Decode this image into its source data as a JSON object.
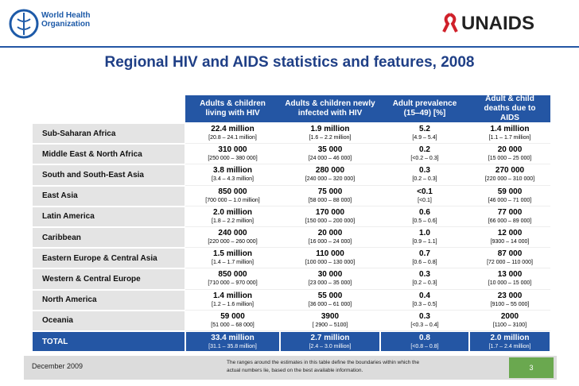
{
  "header": {
    "left_logo": [
      "World Health",
      "Organization"
    ],
    "right_logo": "UNAIDS"
  },
  "title": "Regional HIV and AIDS statistics and features, 2008",
  "table": {
    "columns": [
      "Adults & children living with HIV",
      "Adults & children newly infected with HIV",
      "Adult prevalence (15‒49) [%]",
      "Adult & child deaths due to AIDS"
    ],
    "rows": [
      {
        "region": "Sub-Saharan Africa",
        "cells": [
          [
            "22.4 million",
            "[20.8 – 24.1 million]"
          ],
          [
            "1.9 million",
            "[1.6 – 2.2 million]"
          ],
          [
            "5.2",
            "[4.9 – 5.4]"
          ],
          [
            "1.4 million",
            "[1.1 – 1.7 million]"
          ]
        ]
      },
      {
        "region": "Middle East & North Africa",
        "cells": [
          [
            "310 000",
            "[250 000 – 380 000]"
          ],
          [
            "35 000",
            "[24 000 – 46 000]"
          ],
          [
            "0.2",
            "[<0.2 – 0.3]"
          ],
          [
            "20 000",
            "[15 000 – 25 000]"
          ]
        ]
      },
      {
        "region": "South and South-East Asia",
        "cells": [
          [
            "3.8 million",
            "[3.4 – 4.3 million]"
          ],
          [
            "280 000",
            "[240 000 – 320 000]"
          ],
          [
            "0.3",
            "[0.2 – 0.3]"
          ],
          [
            "270 000",
            "[220 000 – 310 000]"
          ]
        ]
      },
      {
        "region": "East Asia",
        "cells": [
          [
            "850 000",
            "[700 000 – 1.0 million]"
          ],
          [
            "75 000",
            "[58 000 – 88 000]"
          ],
          [
            "<0.1",
            "[<0.1]"
          ],
          [
            "59 000",
            "[46 000 – 71 000]"
          ]
        ]
      },
      {
        "region": "Latin America",
        "cells": [
          [
            "2.0 million",
            "[1.8 – 2.2 million]"
          ],
          [
            "170 000",
            "[150 000 – 200 000]"
          ],
          [
            "0.6",
            "[0.5 – 0.6]"
          ],
          [
            "77 000",
            "[66 000 – 89 000]"
          ]
        ]
      },
      {
        "region": "Caribbean",
        "cells": [
          [
            "240 000",
            "[220 000 – 260 000]"
          ],
          [
            "20 000",
            "[16 000 – 24 000]"
          ],
          [
            "1.0",
            "[0.9 – 1.1]"
          ],
          [
            "12 000",
            "[9300 – 14 000]"
          ]
        ]
      },
      {
        "region": "Eastern Europe & Central Asia",
        "cells": [
          [
            "1.5 million",
            "[1.4 – 1.7 million]"
          ],
          [
            "110 000",
            "[100 000 – 130 000]"
          ],
          [
            "0.7",
            "[0.6 – 0.8]"
          ],
          [
            "87 000",
            "[72 000 – 110 000]"
          ]
        ]
      },
      {
        "region": "Western & Central Europe",
        "cells": [
          [
            "850 000",
            "[710 000 – 970 000]"
          ],
          [
            "30 000",
            "[23 000 – 35 000]"
          ],
          [
            "0.3",
            "[0.2 – 0.3]"
          ],
          [
            "13 000",
            "[10 000 – 15 000]"
          ]
        ]
      },
      {
        "region": "North America",
        "cells": [
          [
            "1.4 million",
            "[1.2 – 1.6 million]"
          ],
          [
            "55 000",
            "[36 000 – 61 000]"
          ],
          [
            "0.4",
            "[0.3 – 0.5]"
          ],
          [
            "23 000",
            "[9100 – 55 000]"
          ]
        ]
      },
      {
        "region": "Oceania",
        "cells": [
          [
            "59 000",
            "[51 000 – 68 000]"
          ],
          [
            "3900",
            "[ 2900 – 5100]"
          ],
          [
            "0.3",
            "[<0.3 – 0.4]"
          ],
          [
            "2000",
            "[1100 – 3100]"
          ]
        ]
      },
      {
        "region": "TOTAL",
        "cells": [
          [
            "33.4 million",
            "[31.1 – 35.8 million]"
          ],
          [
            "2.7 million",
            "[2.4 – 3.0 million]"
          ],
          [
            "0.8",
            "[<0.8 – 0.8]"
          ],
          [
            "2.0 million",
            "[1.7 – 2.4 million]"
          ]
        ]
      }
    ]
  },
  "footer": {
    "date": "December 2009",
    "note": "The ranges around the estimates in this table define the boundaries within which the actual numbers lie, based on the best available information.",
    "page": "3"
  }
}
